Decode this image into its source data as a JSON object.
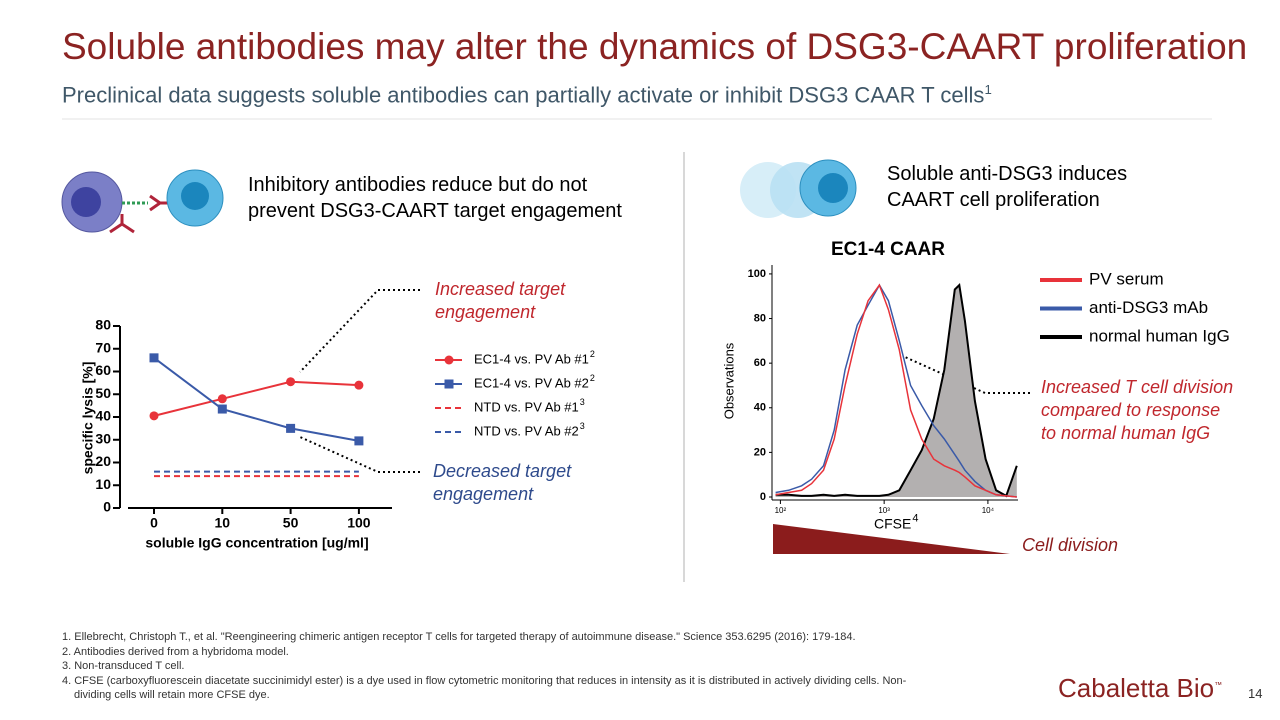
{
  "header": {
    "title": "Soluble antibodies may alter the dynamics of DSG3-CAART proliferation",
    "subtitle": "Preclinical data suggests soluble antibodies can partially activate or inhibit DSG3 CAAR T cells",
    "subtitle_superscript": "1"
  },
  "left_panel": {
    "heading_lines": [
      "Inhibitory antibodies reduce but do not",
      "prevent DSG3-CAART target engagement"
    ],
    "annotation_up_lines": [
      "Increased target",
      "engagement"
    ],
    "annotation_down_lines": [
      "Decreased target",
      "engagement"
    ]
  },
  "right_panel": {
    "heading_lines": [
      "Soluble anti-DSG3 induces",
      "CAART cell proliferation"
    ],
    "annotation_lines": [
      "Increased T cell division",
      "compared to response",
      "to normal human IgG"
    ],
    "cell_division": "Cell division"
  },
  "chart_data": [
    {
      "type": "line",
      "categories": [
        "0",
        "10",
        "50",
        "100"
      ],
      "x_label": "soluble IgG concentration [ug/ml]",
      "y_label": "specific lysis [%]",
      "ylim": [
        0,
        80
      ],
      "yticks": [
        0,
        10,
        20,
        30,
        40,
        50,
        60,
        70,
        80
      ],
      "series": [
        {
          "name": "EC1-4 vs. PV Ab #1",
          "name_superscript": "2",
          "color": "#e8333a",
          "style": "solid",
          "marker": "circle",
          "values": [
            40.5,
            48,
            55.5,
            54
          ]
        },
        {
          "name": "EC1-4 vs. PV Ab #2",
          "name_superscript": "2",
          "color": "#3a5aa8",
          "style": "solid",
          "marker": "square",
          "values": [
            66,
            43.5,
            35,
            29.5
          ]
        },
        {
          "name": "NTD vs. PV Ab #1",
          "name_superscript": "3",
          "color": "#e8333a",
          "style": "dashed",
          "values": [
            14,
            14,
            14,
            14
          ]
        },
        {
          "name": "NTD vs. PV Ab #2",
          "name_superscript": "3",
          "color": "#3a5aa8",
          "style": "dashed",
          "values": [
            16,
            16,
            16,
            16
          ]
        }
      ]
    },
    {
      "type": "line",
      "title": "EC1-4 CAAR",
      "x_label": "CFSE",
      "x_label_superscript": "4",
      "y_label": "Observations",
      "xscale": "log",
      "xlim": [
        83,
        19500
      ],
      "ylim": [
        0,
        104
      ],
      "xticks": [
        {
          "value": 100,
          "label": "10²"
        },
        {
          "value": 1000,
          "label": "10³"
        },
        {
          "value": 10000,
          "label": "10⁴"
        }
      ],
      "yticks": [
        0,
        20,
        40,
        60,
        80,
        100
      ],
      "x": [
        90,
        120,
        160,
        200,
        260,
        330,
        420,
        550,
        700,
        900,
        1100,
        1400,
        1800,
        2300,
        3000,
        3800,
        4800,
        5300,
        6000,
        7500,
        9500,
        12000,
        15000,
        19000
      ],
      "series": [
        {
          "name": "PV serum",
          "color": "#e8333a",
          "values": [
            1,
            2,
            3,
            6,
            12,
            26,
            50,
            73,
            88,
            95,
            84,
            66,
            39,
            26,
            17,
            14,
            12,
            11,
            9,
            5,
            3,
            1,
            0.5,
            0
          ]
        },
        {
          "name": "anti-DSG3 mAb",
          "color": "#3a5aa8",
          "values": [
            2,
            3,
            5,
            8,
            14,
            30,
            57,
            77,
            86,
            95,
            88,
            70,
            50,
            41,
            32,
            26,
            19,
            16,
            12,
            7,
            3,
            1,
            0.5,
            0
          ]
        },
        {
          "name": "normal human IgG",
          "color": "#000000",
          "fill": "#b3b0b0",
          "values": [
            1,
            1,
            0.5,
            0.5,
            1,
            0.5,
            1,
            0.5,
            0.5,
            0.5,
            1,
            3,
            12,
            21,
            35,
            57,
            93,
            95,
            79,
            43,
            17,
            3,
            0.5,
            14
          ]
        }
      ]
    }
  ],
  "footnotes": [
    "1. Ellebrecht, Christoph T., et al. \"Reengineering chimeric antigen receptor T cells for targeted therapy of autoimmune disease.\" Science 353.6295 (2016): 179-184.",
    "2. Antibodies derived from a hybridoma model.",
    "3. Non-transduced T cell.",
    "4. CFSE (carboxyfluorescein diacetate succinimidyl ester) is a dye used in flow cytometric monitoring that reduces in intensity as it is distributed in actively dividing cells. Non-dividing cells will retain more CFSE dye."
  ],
  "logo": "Cabaletta Bio",
  "logo_mark": "™",
  "page_number": "14"
}
